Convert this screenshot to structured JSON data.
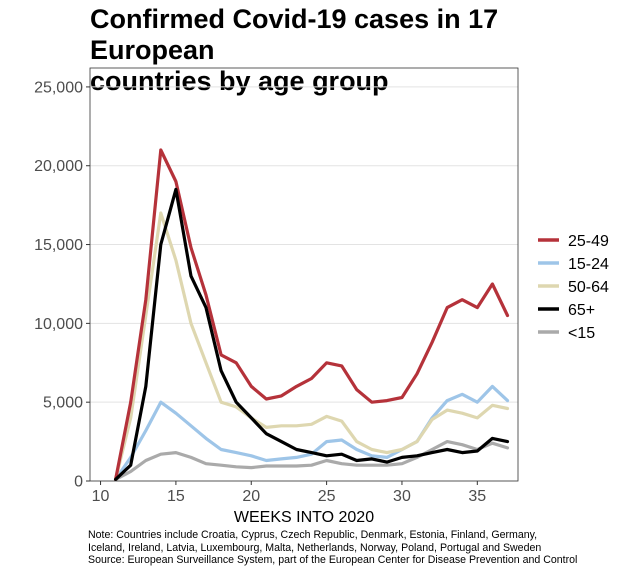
{
  "title_lines": [
    "Confirmed Covid-19 cases in 17 European",
    "countries by age group"
  ],
  "notes": [
    "Note: Countries include Croatia, Cyprus, Czech Republic, Denmark, Estonia, Finland, Germany,",
    "Iceland, Ireland, Latvia, Luxembourg, Malta, Netherlands, Norway, Poland, Portugal and Sweden",
    "Source: European Surveillance System, part of the European Center for Disease Prevention and Control"
  ],
  "chart_data": {
    "type": "line",
    "title": "Confirmed Covid-19 cases in 17 European countries by age group",
    "xlabel": "WEEKS INTO 2020",
    "ylabel": "",
    "xlim": [
      9.3,
      37.7
    ],
    "ylim": [
      0,
      26200
    ],
    "xticks": [
      10,
      15,
      20,
      25,
      30,
      35
    ],
    "xtick_labels": [
      "10",
      "15",
      "20",
      "25",
      "30",
      "35"
    ],
    "yticks": [
      0,
      5000,
      10000,
      15000,
      20000,
      25000
    ],
    "ytick_labels": [
      "0",
      "5,000",
      "10,000",
      "15,000",
      "20,000",
      "25,000"
    ],
    "grid": "horizontal",
    "legend_position": "right",
    "x": [
      11,
      12,
      13,
      14,
      15,
      16,
      17,
      18,
      19,
      20,
      21,
      22,
      23,
      24,
      25,
      26,
      27,
      28,
      29,
      30,
      31,
      32,
      33,
      34,
      35,
      36,
      37
    ],
    "series": [
      {
        "name": "25-49",
        "color": "#b5323a",
        "values": [
          100,
          5000,
          11500,
          21000,
          19000,
          14800,
          11800,
          8000,
          7500,
          6000,
          5200,
          5400,
          6000,
          6500,
          7500,
          7300,
          5800,
          5000,
          5100,
          5300,
          6800,
          8800,
          11000,
          11500,
          11000,
          12500,
          10500
        ]
      },
      {
        "name": "15-24",
        "color": "#9ec5e8",
        "values": [
          100,
          1500,
          3200,
          5000,
          4300,
          3500,
          2700,
          2000,
          1800,
          1600,
          1300,
          1400,
          1500,
          1700,
          2500,
          2600,
          2000,
          1600,
          1500,
          2000,
          2500,
          4000,
          5100,
          5500,
          5000,
          6000,
          5100
        ]
      },
      {
        "name": "50-64",
        "color": "#ded7b0",
        "values": [
          100,
          4000,
          10500,
          17000,
          14000,
          10000,
          7500,
          5000,
          4700,
          4000,
          3400,
          3500,
          3500,
          3600,
          4100,
          3800,
          2500,
          2000,
          1800,
          2000,
          2500,
          3900,
          4500,
          4300,
          4000,
          4800,
          4600
        ]
      },
      {
        "name": "65+",
        "color": "#000000",
        "values": [
          100,
          1000,
          6000,
          15000,
          18500,
          13000,
          11000,
          7000,
          5000,
          4000,
          3000,
          2500,
          2000,
          1800,
          1600,
          1700,
          1300,
          1400,
          1200,
          1500,
          1600,
          1800,
          2000,
          1800,
          1900,
          2700,
          2500
        ]
      },
      {
        "name": "<15",
        "color": "#aaaaaa",
        "values": [
          100,
          600,
          1300,
          1700,
          1800,
          1500,
          1100,
          1000,
          900,
          850,
          950,
          950,
          950,
          1000,
          1300,
          1100,
          1000,
          1000,
          1000,
          1100,
          1500,
          2000,
          2500,
          2300,
          2000,
          2400,
          2100
        ]
      }
    ]
  }
}
